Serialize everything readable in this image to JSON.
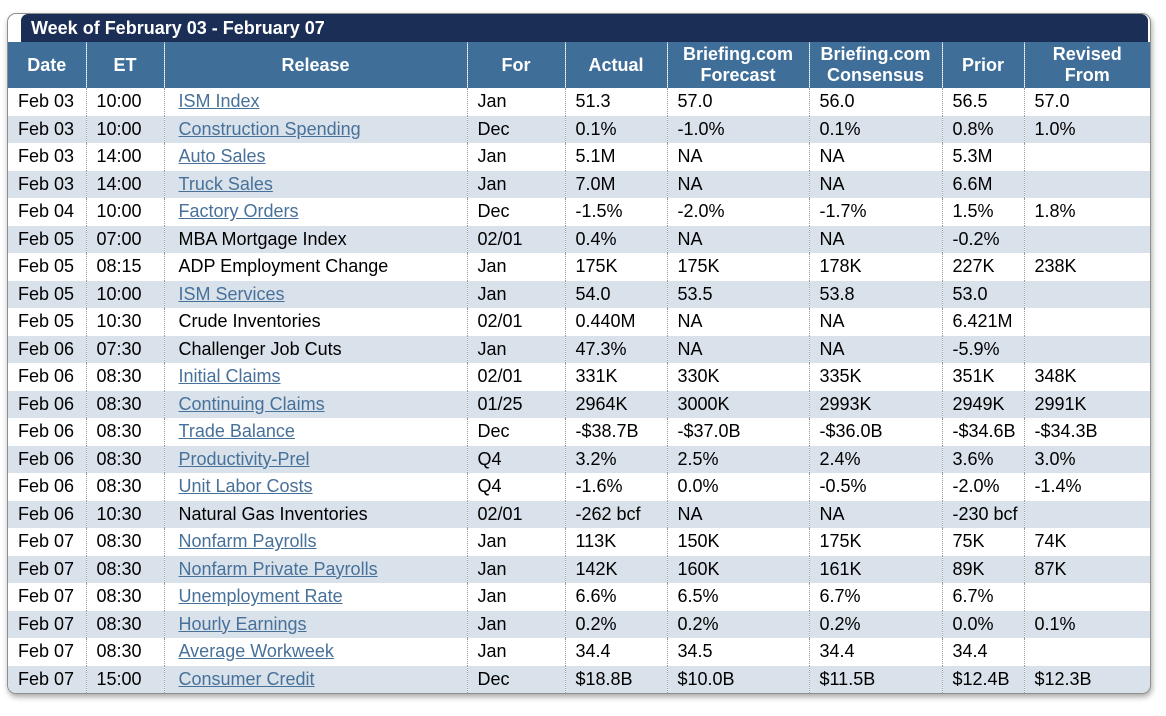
{
  "title": "Week of February 03 - February 07",
  "colors": {
    "title_bar_bg": "#1B2E55",
    "header_bg": "#3F6E99",
    "alt_row_bg": "#D9E2EB",
    "link_color": "#48719A",
    "card_border": "#8f8f8f"
  },
  "table": {
    "columns": [
      {
        "label": "Date"
      },
      {
        "label": "ET"
      },
      {
        "label": "Release"
      },
      {
        "label": "For"
      },
      {
        "label": "Actual"
      },
      {
        "label": "Briefing.com\nForecast"
      },
      {
        "label": "Briefing.com\nConsensus"
      },
      {
        "label": "Prior"
      },
      {
        "label": "Revised\nFrom"
      }
    ],
    "rows": [
      {
        "date": "Feb 03",
        "et": "10:00",
        "release": "ISM Index",
        "link": true,
        "for": "Jan",
        "actual": "51.3",
        "forecast": "57.0",
        "consensus": "56.0",
        "prior": "56.5",
        "revised": "57.0"
      },
      {
        "date": "Feb 03",
        "et": "10:00",
        "release": "Construction Spending",
        "link": true,
        "for": "Dec",
        "actual": "0.1%",
        "forecast": "-1.0%",
        "consensus": "0.1%",
        "prior": "0.8%",
        "revised": "1.0%"
      },
      {
        "date": "Feb 03",
        "et": "14:00",
        "release": "Auto Sales",
        "link": true,
        "for": "Jan",
        "actual": "5.1M",
        "forecast": "NA",
        "consensus": "NA",
        "prior": "5.3M",
        "revised": ""
      },
      {
        "date": "Feb 03",
        "et": "14:00",
        "release": "Truck Sales",
        "link": true,
        "for": "Jan",
        "actual": "7.0M",
        "forecast": "NA",
        "consensus": "NA",
        "prior": "6.6M",
        "revised": ""
      },
      {
        "date": "Feb 04",
        "et": "10:00",
        "release": "Factory Orders",
        "link": true,
        "for": "Dec",
        "actual": "-1.5%",
        "forecast": "-2.0%",
        "consensus": "-1.7%",
        "prior": "1.5%",
        "revised": "1.8%"
      },
      {
        "date": "Feb 05",
        "et": "07:00",
        "release": "MBA Mortgage Index",
        "link": false,
        "for": "02/01",
        "actual": "0.4%",
        "forecast": "NA",
        "consensus": "NA",
        "prior": "-0.2%",
        "revised": ""
      },
      {
        "date": "Feb 05",
        "et": "08:15",
        "release": "ADP Employment Change",
        "link": false,
        "for": "Jan",
        "actual": "175K",
        "forecast": "175K",
        "consensus": "178K",
        "prior": "227K",
        "revised": "238K"
      },
      {
        "date": "Feb 05",
        "et": "10:00",
        "release": "ISM Services",
        "link": true,
        "for": "Jan",
        "actual": "54.0",
        "forecast": "53.5",
        "consensus": "53.8",
        "prior": "53.0",
        "revised": ""
      },
      {
        "date": "Feb 05",
        "et": "10:30",
        "release": "Crude Inventories",
        "link": false,
        "for": "02/01",
        "actual": "0.440M",
        "forecast": "NA",
        "consensus": "NA",
        "prior": "6.421M",
        "revised": ""
      },
      {
        "date": "Feb 06",
        "et": "07:30",
        "release": "Challenger Job Cuts",
        "link": false,
        "for": "Jan",
        "actual": "47.3%",
        "forecast": "NA",
        "consensus": "NA",
        "prior": "-5.9%",
        "revised": ""
      },
      {
        "date": "Feb 06",
        "et": "08:30",
        "release": "Initial Claims",
        "link": true,
        "for": "02/01",
        "actual": "331K",
        "forecast": "330K",
        "consensus": "335K",
        "prior": "351K",
        "revised": "348K"
      },
      {
        "date": "Feb 06",
        "et": "08:30",
        "release": "Continuing Claims",
        "link": true,
        "for": "01/25",
        "actual": "2964K",
        "forecast": "3000K",
        "consensus": "2993K",
        "prior": "2949K",
        "revised": "2991K"
      },
      {
        "date": "Feb 06",
        "et": "08:30",
        "release": "Trade Balance",
        "link": true,
        "for": "Dec",
        "actual": "-$38.7B",
        "forecast": "-$37.0B",
        "consensus": "-$36.0B",
        "prior": "-$34.6B",
        "revised": "-$34.3B"
      },
      {
        "date": "Feb 06",
        "et": "08:30",
        "release": "Productivity-Prel",
        "link": true,
        "for": "Q4",
        "actual": "3.2%",
        "forecast": "2.5%",
        "consensus": "2.4%",
        "prior": "3.6%",
        "revised": "3.0%"
      },
      {
        "date": "Feb 06",
        "et": "08:30",
        "release": "Unit Labor Costs",
        "link": true,
        "for": "Q4",
        "actual": "-1.6%",
        "forecast": "0.0%",
        "consensus": "-0.5%",
        "prior": "-2.0%",
        "revised": "-1.4%"
      },
      {
        "date": "Feb 06",
        "et": "10:30",
        "release": "Natural Gas Inventories",
        "link": false,
        "for": "02/01",
        "actual": "-262 bcf",
        "forecast": "NA",
        "consensus": "NA",
        "prior": "-230 bcf",
        "revised": ""
      },
      {
        "date": "Feb 07",
        "et": "08:30",
        "release": "Nonfarm Payrolls",
        "link": true,
        "for": "Jan",
        "actual": "113K",
        "forecast": "150K",
        "consensus": "175K",
        "prior": "75K",
        "revised": "74K"
      },
      {
        "date": "Feb 07",
        "et": "08:30",
        "release": "Nonfarm Private Payrolls",
        "link": true,
        "for": "Jan",
        "actual": "142K",
        "forecast": "160K",
        "consensus": "161K",
        "prior": "89K",
        "revised": "87K"
      },
      {
        "date": "Feb 07",
        "et": "08:30",
        "release": "Unemployment Rate",
        "link": true,
        "for": "Jan",
        "actual": "6.6%",
        "forecast": "6.5%",
        "consensus": "6.7%",
        "prior": "6.7%",
        "revised": ""
      },
      {
        "date": "Feb 07",
        "et": "08:30",
        "release": "Hourly Earnings",
        "link": true,
        "for": "Jan",
        "actual": "0.2%",
        "forecast": "0.2%",
        "consensus": "0.2%",
        "prior": "0.0%",
        "revised": "0.1%"
      },
      {
        "date": "Feb 07",
        "et": "08:30",
        "release": "Average Workweek",
        "link": true,
        "for": "Jan",
        "actual": "34.4",
        "forecast": "34.5",
        "consensus": "34.4",
        "prior": "34.4",
        "revised": ""
      },
      {
        "date": "Feb 07",
        "et": "15:00",
        "release": "Consumer Credit",
        "link": true,
        "for": "Dec",
        "actual": "$18.8B",
        "forecast": "$10.0B",
        "consensus": "$11.5B",
        "prior": "$12.4B",
        "revised": "$12.3B"
      }
    ]
  }
}
